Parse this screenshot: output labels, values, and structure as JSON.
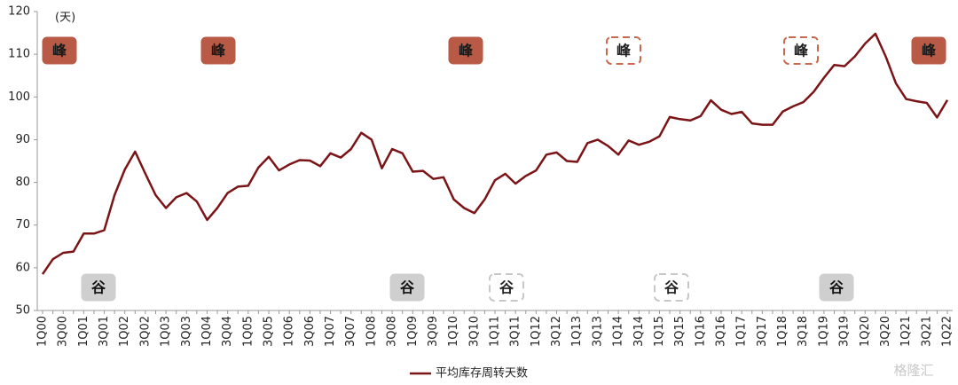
{
  "chart_data": {
    "type": "line",
    "unit_label": "(天)",
    "categories": [
      "1Q00",
      null,
      "3Q00",
      null,
      "1Q01",
      null,
      "3Q01",
      null,
      "1Q02",
      null,
      "3Q02",
      null,
      "1Q03",
      null,
      "3Q03",
      null,
      "1Q04",
      null,
      "3Q04",
      null,
      "1Q05",
      null,
      "3Q05",
      null,
      "1Q06",
      null,
      "3Q06",
      null,
      "1Q07",
      null,
      "3Q07",
      null,
      "1Q08",
      null,
      "3Q08",
      null,
      "1Q09",
      null,
      "3Q09",
      null,
      "1Q10",
      null,
      "3Q10",
      null,
      "1Q11",
      null,
      "3Q11",
      null,
      "1Q12",
      null,
      "3Q12",
      null,
      "1Q13",
      null,
      "3Q13",
      null,
      "1Q14",
      null,
      "3Q14",
      null,
      "1Q15",
      null,
      "3Q15",
      null,
      "1Q16",
      null,
      "3Q16",
      null,
      "1Q17",
      null,
      "3Q17",
      null,
      "1Q18",
      null,
      "3Q18",
      null,
      "1Q19",
      null,
      "3Q19",
      null,
      "1Q20",
      null,
      "3Q20",
      null,
      "1Q21",
      null,
      "3Q21",
      null,
      "1Q22"
    ],
    "series": [
      {
        "name": "平均库存周转天数",
        "color": "#7b1416",
        "values": [
          58.5,
          62,
          63.5,
          63.8,
          68,
          68,
          68.8,
          77,
          83,
          87.2,
          82,
          77,
          74,
          76.5,
          77.5,
          75.5,
          71.2,
          74,
          77.5,
          79,
          79.2,
          83.5,
          86,
          82.8,
          84.2,
          85.2,
          85.1,
          83.8,
          86.8,
          85.8,
          87.8,
          91.6,
          90,
          83.3,
          87.8,
          86.8,
          82.5,
          82.7,
          80.8,
          81.2,
          76,
          74,
          72.8,
          76,
          80.5,
          82,
          79.7,
          81.5,
          82.8,
          86.5,
          87,
          85,
          84.8,
          89.2,
          90,
          88.5,
          86.5,
          89.8,
          88.8,
          89.5,
          90.8,
          95.3,
          94.8,
          94.5,
          95.5,
          99.2,
          97,
          96,
          96.5,
          93.8,
          93.5,
          93.5,
          96.6,
          97.8,
          98.8,
          101.2,
          104.5,
          107.5,
          107.2,
          109.5,
          112.5,
          114.8,
          109.5,
          103.2,
          99.5,
          99,
          98.6,
          95.2,
          99.3
        ]
      }
    ],
    "ylim": [
      50,
      120
    ],
    "yticks": [
      50,
      60,
      70,
      80,
      90,
      100,
      110,
      120
    ],
    "peaks": [
      {
        "text": "峰",
        "style": "solid"
      },
      {
        "text": "峰",
        "style": "solid"
      },
      {
        "text": "峰",
        "style": "solid"
      },
      {
        "text": "峰",
        "style": "dashed"
      },
      {
        "text": "峰",
        "style": "dashed"
      },
      {
        "text": "峰",
        "style": "solid"
      }
    ],
    "troughs": [
      {
        "text": "谷",
        "style": "solid"
      },
      {
        "text": "谷",
        "style": "solid"
      },
      {
        "text": "谷",
        "style": "dashed"
      },
      {
        "text": "谷",
        "style": "dashed"
      },
      {
        "text": "谷",
        "style": "solid"
      }
    ],
    "watermark": "格隆汇"
  }
}
